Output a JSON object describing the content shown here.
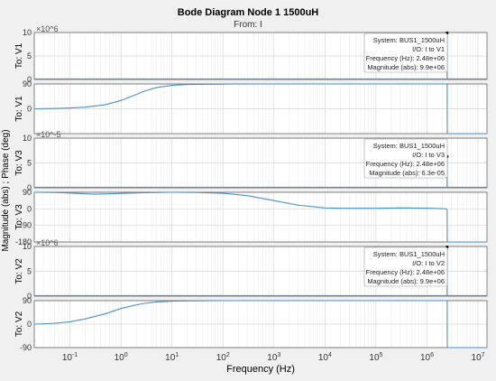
{
  "chart_data": {
    "type": "line",
    "title": "Bode Diagram Node 1 1500uH",
    "subtitle": "From: I",
    "xlabel": "Frequency  (Hz)",
    "ylabel": "Magnitude (abs) ; Phase (deg)",
    "xscale": "log",
    "xlim": [
      0.02,
      15000000
    ],
    "x_ticks": [
      0.1,
      1,
      10,
      100,
      1000,
      10000,
      100000,
      1000000,
      10000000
    ],
    "x_tick_labels": [
      "10^-1",
      "10^0",
      "10^1",
      "10^2",
      "10^3",
      "10^4",
      "10^5",
      "10^6",
      "10^7"
    ],
    "grid": true,
    "line_color": "#4a90c8",
    "panels": [
      {
        "kind": "magnitude",
        "ylabel": "To: V1",
        "exponent": "×10^6",
        "ylim": [
          0,
          10
        ],
        "tick_values": [
          0,
          5,
          10
        ],
        "tick_labels": [
          "0",
          "5",
          "10"
        ],
        "x": [
          0.02,
          1000000,
          2480000,
          2480000,
          2490000,
          2490000,
          15000000
        ],
        "y": [
          0.1,
          0.1,
          0.1,
          9.9,
          9.9,
          0.1,
          0.1
        ],
        "datatip": {
          "x": 2480000,
          "y": 9.9,
          "lines": [
            "System: BUS1_1500uH",
            "I/O: I to V1",
            "Frequency (Hz): 2.48e+06",
            "Magnitude (abs): 9.9e+06"
          ]
        }
      },
      {
        "kind": "phase",
        "ylabel": "To: V1",
        "ylim": [
          -90,
          90
        ],
        "tick_values": [
          0,
          90
        ],
        "tick_labels": [
          "0",
          "90"
        ],
        "x": [
          0.02,
          0.05,
          0.1,
          0.2,
          0.5,
          1,
          2,
          3,
          5,
          10,
          20,
          100,
          1000,
          10000,
          100000,
          1000000,
          2470000,
          2490000,
          2500000,
          15000000
        ],
        "y": [
          0,
          1,
          3,
          6,
          15,
          30,
          52,
          65,
          77,
          85,
          88,
          89.5,
          90,
          90,
          90,
          90,
          90,
          90,
          -90,
          -90
        ]
      },
      {
        "kind": "magnitude",
        "ylabel": "To: V3",
        "exponent": "×10^-5",
        "ylim": [
          0,
          10
        ],
        "tick_values": [
          0,
          5,
          10
        ],
        "tick_labels": [
          "0",
          "5",
          "10"
        ],
        "x": [
          0.02,
          1000000,
          2480000,
          2480000,
          2490000,
          2490000,
          15000000
        ],
        "y": [
          0.1,
          0.1,
          0.1,
          6.3,
          6.3,
          0.1,
          0.1
        ],
        "datatip": {
          "x": 2480000,
          "y": 6.3,
          "lines": [
            "System: BUS1_1500uH",
            "I/O: I to V3",
            "Frequency (Hz): 2.48e+06",
            "Magnitude (abs): 6.3e-05"
          ]
        }
      },
      {
        "kind": "phase",
        "ylabel": "To: V3",
        "ylim": [
          -180,
          90
        ],
        "tick_values": [
          -180,
          -90,
          0,
          90
        ],
        "tick_labels": [
          "-180",
          "-90",
          "0",
          "90"
        ],
        "x": [
          0.02,
          0.05,
          0.1,
          0.3,
          1,
          3,
          10,
          30,
          100,
          300,
          1000,
          3000,
          10000,
          30000,
          100000,
          300000,
          1000000,
          2400000,
          2480000,
          2500000,
          15000000
        ],
        "y": [
          90,
          89,
          86,
          80,
          84,
          88,
          90,
          89,
          85,
          72,
          45,
          20,
          5,
          3,
          3,
          5,
          4,
          0,
          -5,
          -180,
          -180
        ]
      },
      {
        "kind": "magnitude",
        "ylabel": "To: V2",
        "exponent": "×10^6",
        "ylim": [
          0,
          10
        ],
        "tick_values": [
          0,
          5,
          10
        ],
        "tick_labels": [
          "0",
          "5",
          "10"
        ],
        "x": [
          0.02,
          1000000,
          2480000,
          2480000,
          2490000,
          2490000,
          15000000
        ],
        "y": [
          0.1,
          0.1,
          0.1,
          9.9,
          9.9,
          0.1,
          0.1
        ],
        "datatip": {
          "x": 2480000,
          "y": 9.9,
          "lines": [
            "System: BUS1_1500uH",
            "I/O: I to V2",
            "Frequency (Hz): 2.48e+06",
            "Magnitude (abs): 9.9e+06"
          ]
        }
      },
      {
        "kind": "phase",
        "ylabel": "To: V2",
        "ylim": [
          -90,
          90
        ],
        "tick_values": [
          -90,
          0,
          90
        ],
        "tick_labels": [
          "-90",
          "0",
          "90"
        ],
        "x": [
          0.02,
          0.05,
          0.1,
          0.2,
          0.5,
          1,
          2,
          3,
          5,
          10,
          20,
          100,
          1000,
          10000,
          100000,
          1000000,
          2470000,
          2490000,
          2500000,
          15000000
        ],
        "y": [
          0,
          3,
          9,
          20,
          40,
          60,
          74,
          80,
          85,
          88,
          89,
          90,
          90,
          90,
          90,
          90,
          90,
          90,
          -90,
          -90
        ]
      }
    ]
  }
}
